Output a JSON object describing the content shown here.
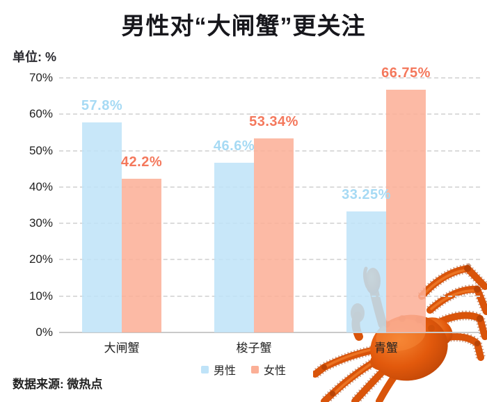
{
  "header": {
    "title": "男性对“大闸蟹”更关注",
    "unit_label": "单位: %"
  },
  "footer": {
    "source": "数据来源: 微热点"
  },
  "legend": {
    "items": [
      {
        "key": "male",
        "label": "男性",
        "color": "#BFE3F8"
      },
      {
        "key": "female",
        "label": "女性",
        "color": "#FBAF96"
      }
    ]
  },
  "colors": {
    "male_bar": "#BFE3F8",
    "female_bar": "#FBAF96",
    "male_value_label": "#A6DAF4",
    "female_value_label": "#F4785C",
    "axis_text": "#222222",
    "gridline": "#DBDBDB",
    "axis_line": "#C9C9C9",
    "title_text": "#17171C",
    "crab_orange": "#E2590C"
  },
  "chart_data": {
    "type": "bar",
    "title": "男性对“大闸蟹”更关注",
    "unit": "单位: %",
    "source": "数据来源: 微热点",
    "categories": [
      "大闸蟹",
      "梭子蟹",
      "青蟹"
    ],
    "series": [
      {
        "key": "male",
        "name": "男性",
        "values": [
          57.8,
          46.6,
          33.25
        ],
        "labels": [
          "57.8%",
          "46.6%",
          "33.25%"
        ],
        "color": "#BFE3F8",
        "label_color": "#A6DAF4"
      },
      {
        "key": "female",
        "name": "女性",
        "values": [
          42.2,
          53.34,
          66.75
        ],
        "labels": [
          "42.2%",
          "53.34%",
          "66.75%"
        ],
        "color": "#FBAF96",
        "label_color": "#F4785C"
      }
    ],
    "xlabel": "",
    "ylabel": "单位: %",
    "ylim": [
      0,
      70
    ],
    "ytick_step": 10,
    "ytick_labels": [
      "0%",
      "10%",
      "20%",
      "30%",
      "40%",
      "50%",
      "60%",
      "70%"
    ],
    "grid": "horizontal-dashed",
    "legend_position": "bottom-center",
    "decoration": "orange crab photo overlapping bottom-right of plot"
  }
}
